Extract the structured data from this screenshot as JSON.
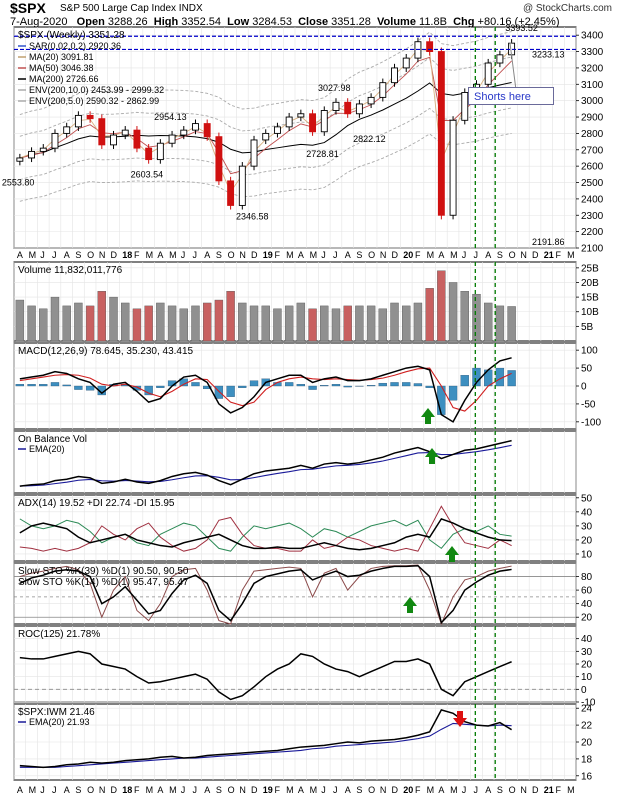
{
  "header": {
    "symbol": "$SPX",
    "name": "S&P 500 Large Cap Index",
    "exchange": "INDX",
    "watermark": "@ StockCharts.com",
    "date": "7-Aug-2020",
    "open_label": "Open",
    "open": "3288.26",
    "high_label": "High",
    "high": "3352.54",
    "low_label": "Low",
    "low": "3284.53",
    "close_label": "Close",
    "close": "3351.28",
    "volume_label": "Volume",
    "volume": "11.8B",
    "chg_label": "Chg",
    "chg": "+80.16 (+2.45%)"
  },
  "annotation": "Shorts here",
  "colors": {
    "sma50": "#c05050",
    "sma200": "#000000",
    "env": "#aaaaaa",
    "candle_up": "#000000",
    "candle_down": "#d01010",
    "vol_up": "#909090",
    "vol_down": "#c86060",
    "macd_hist": "#3d8fc0",
    "ema": "#1a1a99",
    "dplus": "#2c8a56",
    "dminus": "#a03040",
    "signal": "#d02020",
    "ref_line": "#0000cc",
    "marker_line": "#007a00",
    "arrow_up": "#118811",
    "arrow_down": "#dd1111",
    "hline": "#888888"
  },
  "chart_data": [
    {
      "type": "line",
      "title": "$SPX (Weekly) 3351.28",
      "x_axis": [
        "A",
        "M",
        "J",
        "J",
        "A",
        "S",
        "O",
        "N",
        "D",
        "18",
        "F",
        "M",
        "A",
        "M",
        "J",
        "J",
        "A",
        "S",
        "O",
        "N",
        "D",
        "19",
        "F",
        "M",
        "A",
        "M",
        "J",
        "J",
        "A",
        "S",
        "O",
        "N",
        "D",
        "20",
        "F",
        "M",
        "A",
        "M",
        "J",
        "J",
        "A",
        "S",
        "O",
        "N",
        "D",
        "21",
        "F",
        "M"
      ],
      "ylim": [
        2100,
        3450
      ],
      "yticks": [
        2100,
        2200,
        2300,
        2400,
        2500,
        2600,
        2700,
        2800,
        2900,
        3000,
        3100,
        3200,
        3300,
        3400
      ],
      "legend": [
        {
          "key": "sar",
          "text": "SAR(0.02,0.2) 2920.36"
        },
        {
          "key": "sma20",
          "text": "MA(20) 3091.81"
        },
        {
          "key": "sma50",
          "text": "MA(50) 3046.38"
        },
        {
          "key": "sma200",
          "text": "MA(200) 2726.66"
        },
        {
          "key": "env10",
          "text": "ENV(200,10.0) 2453.99 - 2999.32"
        },
        {
          "key": "env5",
          "text": "ENV(200,5.0) 2590.32 - 2862.99"
        }
      ],
      "labels": [
        {
          "text": "2553.80",
          "value": 2553.8,
          "month_index": 0
        },
        {
          "text": "2603.54",
          "value": 2603.54,
          "month_index": 11
        },
        {
          "text": "2346.58",
          "value": 2346.58,
          "month_index": 20
        },
        {
          "text": "2954.13",
          "value": 2954.13,
          "month_index": 13
        },
        {
          "text": "2728.81",
          "value": 2728.81,
          "month_index": 26
        },
        {
          "text": "3027.98",
          "value": 3027.98,
          "month_index": 27
        },
        {
          "text": "2822.12",
          "value": 2822.12,
          "month_index": 30
        },
        {
          "text": "3393.52",
          "value": 3393.52,
          "month_index": 43
        },
        {
          "text": "3233.13",
          "value": 3233.13,
          "month_index": 47
        },
        {
          "text": "2191.86",
          "value": 2191.86,
          "month_index": 46
        }
      ],
      "ref_levels": [
        3393.52,
        3313
      ],
      "monthly_close": [
        2650,
        2690,
        2710,
        2800,
        2840,
        2910,
        2890,
        2730,
        2790,
        2820,
        2710,
        2640,
        2740,
        2790,
        2820,
        2860,
        2780,
        2510,
        2360,
        2600,
        2760,
        2800,
        2840,
        2900,
        2920,
        2810,
        2940,
        2990,
        2920,
        2980,
        3020,
        3110,
        3200,
        3260,
        3360,
        3300,
        2300,
        2880,
        3050,
        3100,
        3230,
        3280,
        3351.28
      ],
      "close_value": 3351.28
    },
    {
      "type": "bar",
      "title": "Volume 11,832,011,776",
      "ylim": [
        0,
        27
      ],
      "yticks": [
        5,
        10,
        15,
        20,
        25
      ],
      "ytick_labels": [
        "5B",
        "10B",
        "15B",
        "20B",
        "25B"
      ],
      "values_b": [
        14,
        12,
        11,
        15,
        12,
        13,
        12,
        17,
        15,
        13,
        11,
        12,
        13,
        12,
        11,
        12,
        13,
        14,
        17,
        13,
        12,
        12,
        11,
        12,
        13,
        11,
        12,
        11,
        12,
        12,
        12,
        11,
        13,
        12,
        13,
        18,
        24,
        20,
        17,
        16,
        13,
        12,
        11.8
      ]
    },
    {
      "type": "line",
      "title": "MACD(12,26,9) 78.645, 35.230, 43.415",
      "ylim": [
        -120,
        120
      ],
      "yticks": [
        -100,
        -50,
        0,
        50,
        100
      ],
      "macd": [
        20,
        25,
        30,
        40,
        35,
        20,
        10,
        -20,
        5,
        10,
        -15,
        -45,
        -35,
        0,
        25,
        30,
        10,
        -50,
        -75,
        -60,
        -30,
        10,
        20,
        30,
        30,
        10,
        20,
        25,
        15,
        15,
        20,
        30,
        40,
        50,
        55,
        45,
        -80,
        -100,
        -40,
        10,
        45,
        70,
        78.645
      ],
      "signal": [
        15,
        20,
        25,
        30,
        32,
        30,
        22,
        5,
        0,
        5,
        -3,
        -20,
        -30,
        -15,
        5,
        20,
        18,
        -15,
        -45,
        -55,
        -45,
        -10,
        10,
        20,
        25,
        20,
        18,
        20,
        18,
        16,
        18,
        22,
        30,
        40,
        48,
        50,
        0,
        -60,
        -70,
        -40,
        0,
        20,
        35.23
      ],
      "hist": [
        5,
        5,
        5,
        10,
        3,
        -10,
        -12,
        -25,
        5,
        5,
        -12,
        -25,
        -5,
        15,
        20,
        10,
        -8,
        -35,
        -30,
        -5,
        15,
        20,
        10,
        10,
        5,
        -10,
        2,
        5,
        -3,
        -1,
        2,
        8,
        10,
        10,
        7,
        -5,
        -80,
        -40,
        30,
        50,
        45,
        50,
        43.415
      ]
    },
    {
      "type": "line",
      "title": "On Balance Vol",
      "legend": [
        "EMA(20)"
      ],
      "obv": [
        10,
        12,
        13,
        18,
        20,
        24,
        22,
        14,
        16,
        20,
        16,
        14,
        18,
        24,
        28,
        30,
        26,
        18,
        12,
        20,
        28,
        32,
        34,
        36,
        40,
        36,
        42,
        44,
        42,
        44,
        48,
        52,
        58,
        62,
        66,
        60,
        50,
        56,
        62,
        64,
        68,
        72,
        76
      ]
    },
    {
      "type": "line",
      "title": "ADX(14) 19.52 +DI 22.74 -DI 15.95",
      "ylim": [
        5,
        52
      ],
      "yticks": [
        10,
        20,
        30,
        40,
        50
      ],
      "adx": [
        25,
        30,
        32,
        30,
        28,
        22,
        18,
        20,
        22,
        24,
        20,
        18,
        16,
        15,
        18,
        20,
        22,
        24,
        20,
        16,
        14,
        14,
        15,
        14,
        14,
        16,
        18,
        16,
        14,
        13,
        14,
        16,
        18,
        22,
        24,
        22,
        35,
        32,
        28,
        25,
        22,
        20,
        19.52
      ],
      "dplus": [
        35,
        30,
        28,
        30,
        34,
        32,
        26,
        18,
        22,
        24,
        18,
        16,
        24,
        28,
        32,
        30,
        22,
        14,
        12,
        22,
        30,
        28,
        30,
        32,
        28,
        22,
        28,
        26,
        22,
        26,
        30,
        32,
        34,
        30,
        34,
        20,
        14,
        24,
        28,
        26,
        30,
        24,
        22.74
      ],
      "dminus": [
        15,
        14,
        12,
        14,
        12,
        14,
        18,
        30,
        24,
        20,
        28,
        32,
        22,
        16,
        12,
        14,
        20,
        34,
        36,
        24,
        16,
        14,
        14,
        12,
        12,
        20,
        14,
        16,
        22,
        20,
        16,
        14,
        12,
        14,
        12,
        28,
        44,
        30,
        18,
        16,
        14,
        20,
        15.95
      ]
    },
    {
      "type": "line",
      "title": "Slow STO %K(39) %D(1) 90.50, 90.50 | Slow STO %K(14) %D(1) 95.47, 95.47",
      "ylim": [
        10,
        100
      ],
      "yticks": [
        20,
        40,
        60,
        80
      ],
      "sto39": [
        70,
        78,
        82,
        88,
        90,
        88,
        80,
        40,
        50,
        65,
        45,
        25,
        30,
        55,
        75,
        82,
        70,
        30,
        15,
        40,
        70,
        80,
        84,
        88,
        90,
        75,
        82,
        88,
        80,
        82,
        88,
        92,
        95,
        95,
        96,
        80,
        12,
        30,
        60,
        72,
        82,
        88,
        90.5
      ],
      "sto14": [
        80,
        85,
        88,
        92,
        95,
        90,
        70,
        20,
        60,
        80,
        30,
        15,
        40,
        80,
        90,
        92,
        60,
        15,
        10,
        60,
        88,
        90,
        92,
        94,
        92,
        50,
        85,
        92,
        60,
        80,
        92,
        95,
        96,
        96,
        97,
        60,
        10,
        50,
        75,
        80,
        88,
        92,
        95.47
      ]
    },
    {
      "type": "line",
      "title": "ROC(125) 21.78%",
      "ylim": [
        -10,
        50
      ],
      "yticks": [
        -10,
        0,
        10,
        20,
        30,
        40
      ],
      "roc": [
        25,
        24,
        24,
        26,
        28,
        30,
        28,
        20,
        18,
        16,
        10,
        5,
        6,
        8,
        10,
        12,
        8,
        -2,
        -8,
        -5,
        2,
        10,
        16,
        20,
        28,
        26,
        20,
        16,
        14,
        10,
        14,
        18,
        22,
        22,
        24,
        20,
        0,
        -5,
        6,
        10,
        14,
        18,
        21.78
      ]
    },
    {
      "type": "line",
      "title": "$SPX:IWM 21.46",
      "legend": [
        "EMA(20) 21.93"
      ],
      "ylim": [
        15.5,
        24.5
      ],
      "yticks": [
        16,
        18,
        20,
        22,
        24
      ],
      "ratio": [
        17.2,
        17.1,
        17.0,
        17.1,
        17.3,
        17.4,
        17.6,
        17.5,
        17.6,
        17.8,
        17.9,
        18.0,
        18.2,
        18.3,
        18.1,
        18.2,
        18.4,
        18.5,
        18.6,
        18.7,
        18.8,
        18.9,
        19.0,
        19.2,
        19.4,
        19.5,
        19.6,
        19.8,
        20.0,
        19.9,
        20.1,
        20.2,
        20.3,
        20.5,
        20.8,
        21.2,
        23.8,
        23.4,
        22.4,
        22.0,
        21.9,
        22.3,
        21.46
      ],
      "ema": [
        17.0,
        17.0,
        17.0,
        17.0,
        17.1,
        17.2,
        17.3,
        17.4,
        17.5,
        17.6,
        17.7,
        17.8,
        17.9,
        18.0,
        18.1,
        18.1,
        18.2,
        18.3,
        18.4,
        18.5,
        18.6,
        18.7,
        18.8,
        18.9,
        19.0,
        19.2,
        19.3,
        19.5,
        19.6,
        19.7,
        19.8,
        19.9,
        20.0,
        20.2,
        20.4,
        20.7,
        21.5,
        22.2,
        22.1,
        22.0,
        21.9,
        22.0,
        21.93
      ]
    }
  ]
}
